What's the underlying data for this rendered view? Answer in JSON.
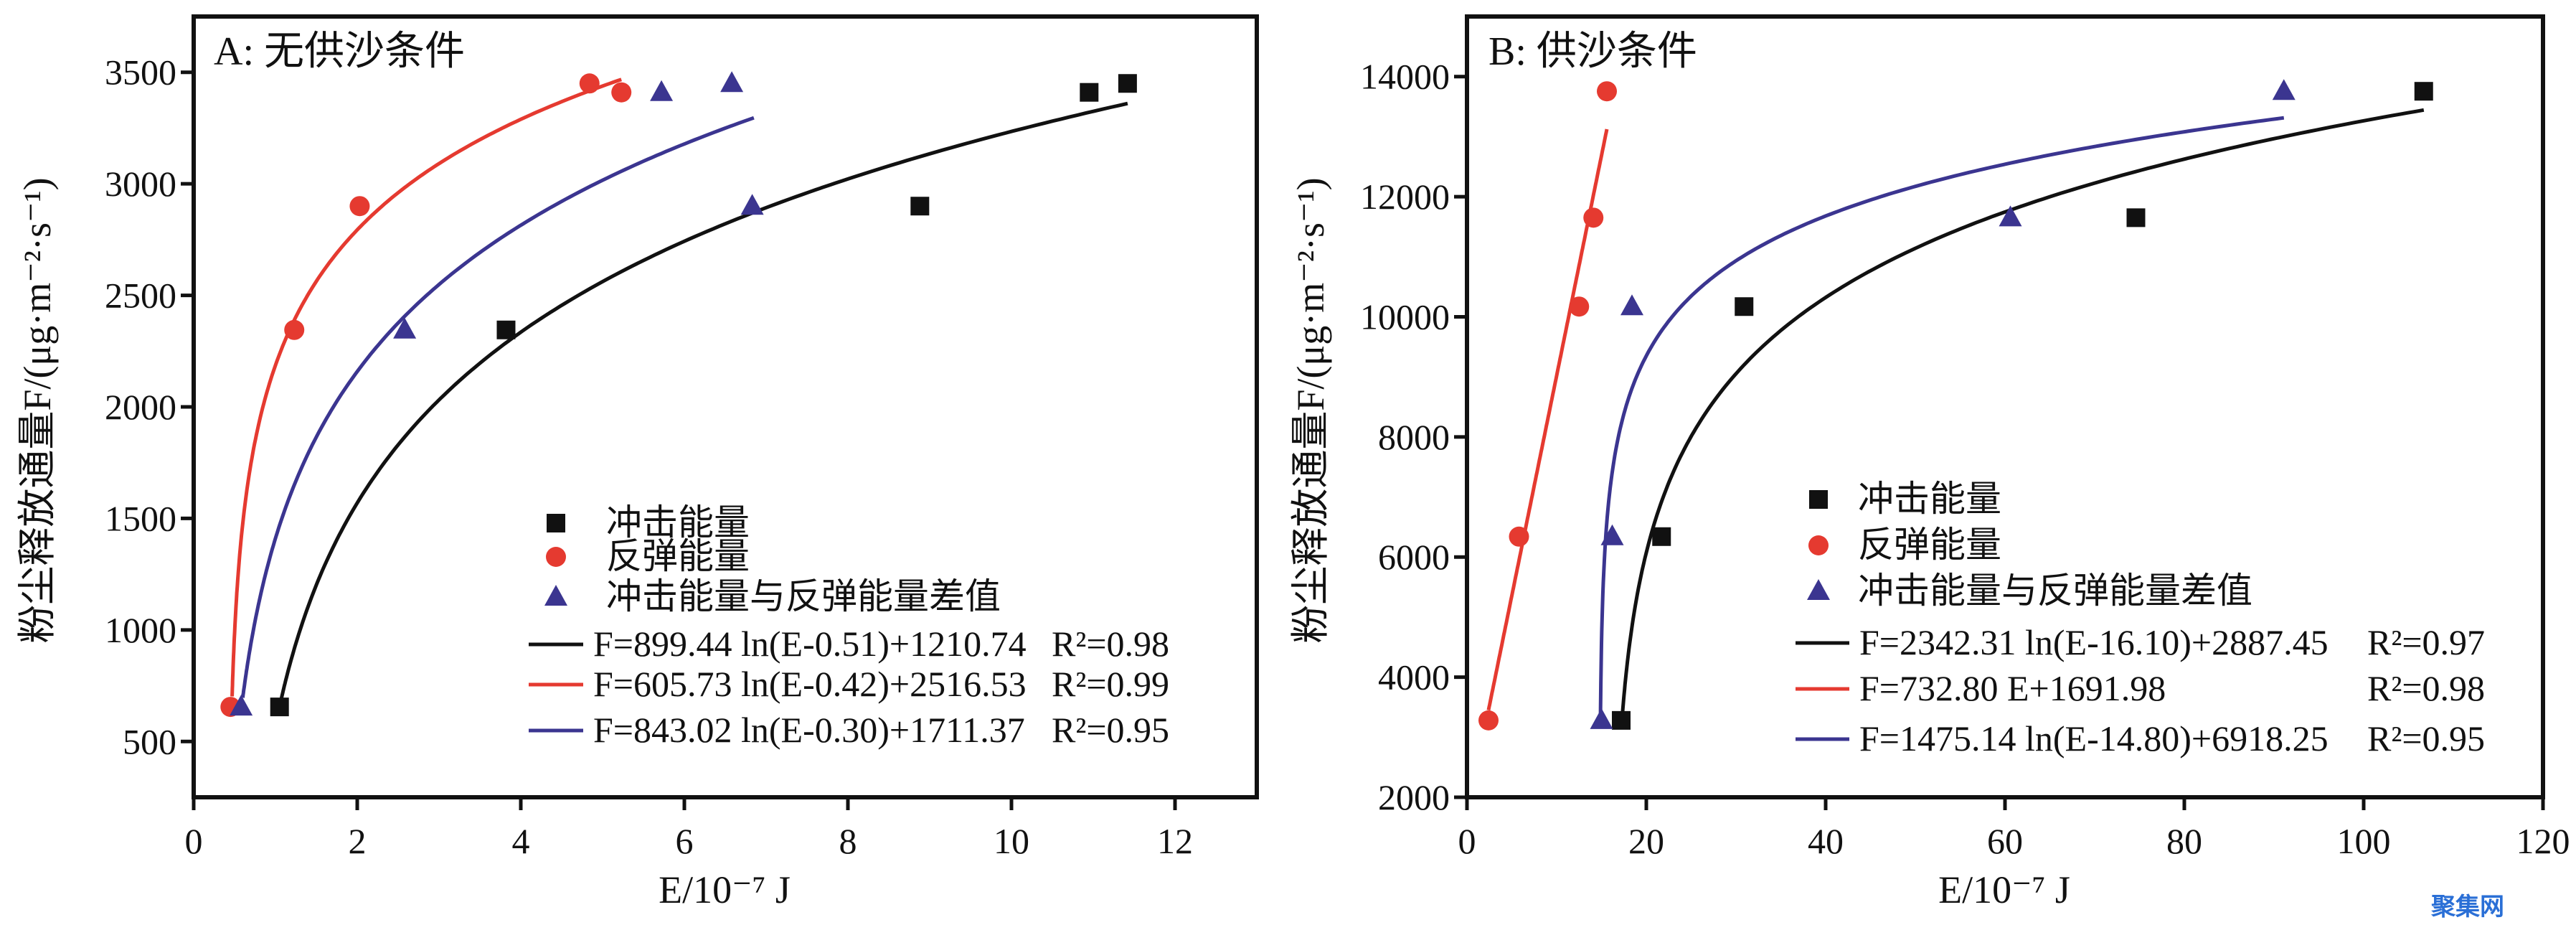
{
  "chart_data": [
    {
      "type": "scatter",
      "title": "A: 无供沙条件",
      "xlabel": "E/10⁻⁷ J",
      "ylabel": "粉尘释放通量F/(μg·m⁻²·s⁻¹)",
      "xlim": [
        0,
        13
      ],
      "ylim": [
        250,
        3750
      ],
      "xticks": [
        0,
        2,
        4,
        6,
        8,
        10,
        12
      ],
      "yticks": [
        500,
        1000,
        1500,
        2000,
        2500,
        3000,
        3500
      ],
      "grid": false,
      "legend_position": "bottom-right",
      "series": [
        {
          "name": "冲击能量",
          "marker": "square",
          "color": "#111111",
          "x": [
            1.05,
            3.82,
            8.88,
            10.95,
            11.42
          ],
          "y": [
            655,
            2345,
            2900,
            3410,
            3450
          ]
        },
        {
          "name": "反弹能量",
          "marker": "circle",
          "color": "#e53a30",
          "x": [
            0.45,
            1.23,
            2.03,
            4.84,
            5.23
          ],
          "y": [
            655,
            2345,
            2900,
            3450,
            3410
          ]
        },
        {
          "name": "冲击能量与反弹能量差值",
          "marker": "triangle",
          "color": "#3b3590",
          "x": [
            0.58,
            2.58,
            5.72,
            6.58,
            6.83
          ],
          "y": [
            655,
            2345,
            3410,
            3450,
            2900
          ]
        }
      ],
      "fits": [
        {
          "equation": "F=899.44 ln(E-0.51)+1210.74",
          "r2": "R²=0.98",
          "color": "#111111",
          "kind": "log",
          "a": 899.44,
          "c": 0.51,
          "b": 1210.74,
          "xrange": [
            1.05,
            11.42
          ]
        },
        {
          "equation": "F=605.73 ln(E-0.42)+2516.53",
          "r2": "R²=0.99",
          "color": "#e53a30",
          "kind": "log",
          "a": 605.73,
          "c": 0.42,
          "b": 2516.53,
          "xrange": [
            0.47,
            5.23
          ]
        },
        {
          "equation": "F=843.02 ln(E-0.30)+1711.37",
          "r2": "R²=0.95",
          "color": "#3b3590",
          "kind": "log",
          "a": 843.02,
          "c": 0.3,
          "b": 1711.37,
          "xrange": [
            0.6,
            6.85
          ]
        }
      ]
    },
    {
      "type": "scatter",
      "title": "B: 供沙条件",
      "xlabel": "E/10⁻⁷ J",
      "ylabel": "粉尘释放通量F/(μg·m⁻²·s⁻¹)",
      "xlim": [
        0,
        120
      ],
      "ylim": [
        2000,
        15000
      ],
      "xticks": [
        0,
        20,
        40,
        60,
        80,
        100,
        120
      ],
      "yticks": [
        2000,
        4000,
        6000,
        8000,
        10000,
        12000,
        14000
      ],
      "grid": false,
      "legend_position": "bottom-right",
      "series": [
        {
          "name": "冲击能量",
          "marker": "square",
          "color": "#111111",
          "x": [
            17.2,
            21.7,
            30.9,
            74.6,
            106.7
          ],
          "y": [
            3280,
            6340,
            10170,
            11650,
            13755
          ]
        },
        {
          "name": "反弹能量",
          "marker": "circle",
          "color": "#e53a30",
          "x": [
            2.4,
            5.8,
            12.5,
            14.1,
            15.6
          ],
          "y": [
            3280,
            6340,
            10170,
            11650,
            13755
          ]
        },
        {
          "name": "冲击能量与反弹能量差值",
          "marker": "triangle",
          "color": "#3b3590",
          "x": [
            15.0,
            16.2,
            18.4,
            60.6,
            91.1
          ],
          "y": [
            3280,
            6340,
            10170,
            11650,
            13755
          ]
        }
      ],
      "fits": [
        {
          "equation": "F=2342.31 ln(E-16.10)+2887.45",
          "r2": "R²=0.97",
          "color": "#111111",
          "kind": "log",
          "a": 2342.31,
          "c": 16.1,
          "b": 2887.45,
          "xrange": [
            17.25,
            106.7
          ]
        },
        {
          "equation": "F=732.80 E+1691.98",
          "r2": "R²=0.98",
          "color": "#e53a30",
          "kind": "linear",
          "a": 732.8,
          "b": 1691.98,
          "xrange": [
            2.4,
            15.6
          ]
        },
        {
          "equation": "F=1475.14 ln(E-14.80)+6918.25",
          "r2": "R²=0.95",
          "color": "#3b3590",
          "kind": "log",
          "a": 1475.14,
          "c": 14.8,
          "b": 6918.25,
          "xrange": [
            14.88,
            91.1
          ]
        }
      ]
    }
  ],
  "watermark": "聚集网"
}
